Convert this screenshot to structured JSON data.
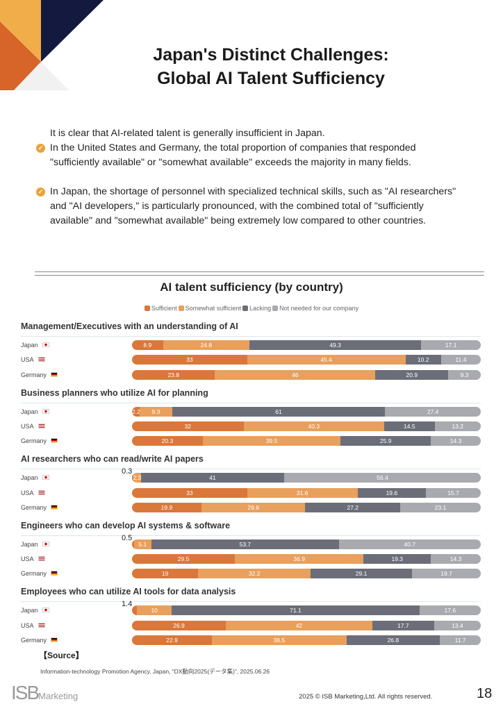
{
  "title_lines": [
    "Japan's Distinct Challenges:",
    "Global AI Talent Sufficiency"
  ],
  "intro": {
    "lead": "It is clear that AI-related talent is generally insufficient in Japan.",
    "bullets": [
      "In the United States and Germany, the total proportion of companies that responded \"sufficiently available\" or \"somewhat available\" exceeds the majority in many fields.",
      "In Japan, the shortage of personnel with specialized technical skills, such as \"AI researchers\" and \"AI developers,\" is particularly pronounced, with the combined total of \"sufficiently available\" and \"somewhat available\" being extremely low compared to other countries."
    ]
  },
  "chart_data": {
    "type": "bar",
    "stacked": true,
    "orientation": "horizontal",
    "title": "AI talent sufficiency (by country)",
    "legend": [
      "Sufficient",
      "Somewhat sufficient",
      "Lacking",
      "Not needed for our company"
    ],
    "legend_placement": "top",
    "colors": [
      "#d9783a",
      "#e8a05c",
      "#6b6e78",
      "#a8aab0"
    ],
    "groups": [
      {
        "title": "Management/Executives with an understanding of AI",
        "rows": [
          {
            "country": "Japan",
            "values": [
              8.9,
              24.8,
              49.3,
              17.1
            ]
          },
          {
            "country": "USA",
            "values": [
              33,
              45.4,
              10.2,
              11.4
            ]
          },
          {
            "country": "Germany",
            "values": [
              23.8,
              46,
              20.9,
              9.3
            ]
          }
        ]
      },
      {
        "title": "Business planners who utilize AI for planning",
        "rows": [
          {
            "country": "Japan",
            "values": [
              2.2,
              9.3,
              61,
              27.4
            ]
          },
          {
            "country": "USA",
            "values": [
              32,
              40.3,
              14.5,
              13.2
            ]
          },
          {
            "country": "Germany",
            "values": [
              20.3,
              39.5,
              25.9,
              14.3
            ]
          }
        ]
      },
      {
        "title": "AI researchers who can read/write AI papers",
        "rows": [
          {
            "country": "Japan",
            "values": [
              0.3,
              2.3,
              41,
              56.4
            ]
          },
          {
            "country": "USA",
            "values": [
              33,
              31.6,
              19.6,
              15.7
            ]
          },
          {
            "country": "Germany",
            "values": [
              19.9,
              29.8,
              27.2,
              23.1
            ]
          }
        ]
      },
      {
        "title": "Engineers who can develop AI systems & software",
        "rows": [
          {
            "country": "Japan",
            "values": [
              0.5,
              5.1,
              53.7,
              40.7
            ]
          },
          {
            "country": "USA",
            "values": [
              29.5,
              36.9,
              19.3,
              14.3
            ]
          },
          {
            "country": "Germany",
            "values": [
              19,
              32.2,
              29.1,
              19.7
            ]
          }
        ]
      },
      {
        "title": "Employees who can utilize AI tools for data analysis",
        "rows": [
          {
            "country": "Japan",
            "values": [
              1.4,
              10,
              71.1,
              17.6
            ]
          },
          {
            "country": "USA",
            "values": [
              26.9,
              42,
              17.7,
              13.4
            ]
          },
          {
            "country": "Germany",
            "values": [
              22.9,
              38.5,
              26.8,
              11.7
            ]
          }
        ]
      }
    ]
  },
  "source": {
    "heading": "【Source】",
    "text": "Information-technology Promotion Agency, Japan, “DX動向2025(データ集)”, 2025.06.26"
  },
  "footer": {
    "logo_text": "ISB Marketing",
    "copyright": "2025 © ISB Marketing,Ltd.   All rights reserved.",
    "page_number": "18"
  }
}
